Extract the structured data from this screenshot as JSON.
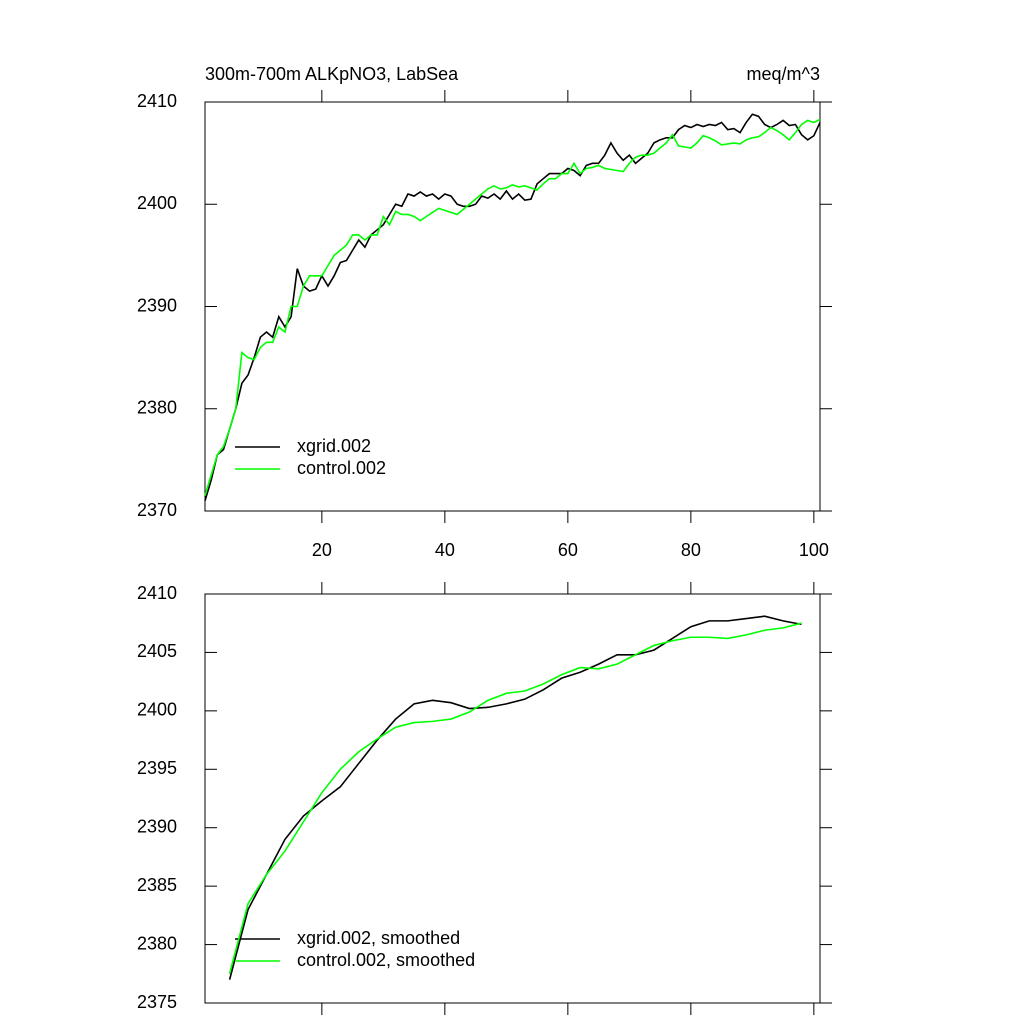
{
  "chart_data": [
    {
      "type": "line",
      "title": "300m-700m ALKpNO3, LabSea",
      "units": "meq/m^3",
      "x": [
        1,
        2,
        3,
        4,
        5,
        6,
        7,
        8,
        9,
        10,
        11,
        12,
        13,
        14,
        15,
        16,
        17,
        18,
        19,
        20,
        21,
        22,
        23,
        24,
        25,
        26,
        27,
        28,
        29,
        30,
        31,
        32,
        33,
        34,
        35,
        36,
        37,
        38,
        39,
        40,
        41,
        42,
        43,
        44,
        45,
        46,
        47,
        48,
        49,
        50,
        51,
        52,
        53,
        54,
        55,
        56,
        57,
        58,
        59,
        60,
        61,
        62,
        63,
        64,
        65,
        66,
        67,
        68,
        69,
        70,
        71,
        72,
        73,
        74,
        75,
        76,
        77,
        78,
        79,
        80,
        81,
        82,
        83,
        84,
        85,
        86,
        87,
        88,
        89,
        90,
        91,
        92,
        93,
        94,
        95,
        96,
        97,
        98,
        99,
        100,
        101
      ],
      "series": [
        {
          "name": "xgrid.002",
          "color": "#000000",
          "values": [
            2371,
            2373,
            2375.5,
            2376,
            2378,
            2380,
            2382.5,
            2383.3,
            2385,
            2387,
            2387.5,
            2387,
            2389,
            2388,
            2389,
            2393.7,
            2392,
            2391.5,
            2391.7,
            2393,
            2392,
            2393,
            2394.3,
            2394.5,
            2395.5,
            2396.5,
            2395.8,
            2397,
            2397.5,
            2398,
            2399,
            2400,
            2399.8,
            2401,
            2400.8,
            2401.2,
            2400.8,
            2401,
            2400.5,
            2401,
            2400.8,
            2400,
            2399.8,
            2399.8,
            2400,
            2400.8,
            2400.6,
            2401,
            2400.5,
            2401.3,
            2400.5,
            2401,
            2400.4,
            2400.5,
            2402,
            2402.5,
            2403,
            2403,
            2403,
            2403.5,
            2403.3,
            2402.8,
            2403.8,
            2404,
            2404,
            2404.8,
            2406,
            2405,
            2404.3,
            2404.8,
            2404,
            2404.5,
            2405,
            2406,
            2406.3,
            2406.5,
            2406.5,
            2407.3,
            2407.7,
            2407.5,
            2407.8,
            2407.6,
            2407.8,
            2407.7,
            2408,
            2407.3,
            2407.4,
            2407,
            2408,
            2408.8,
            2408.6,
            2407.8,
            2407.5,
            2407.8,
            2408.2,
            2407.7,
            2407.8,
            2406.8,
            2406.3,
            2406.7,
            2408
          ]
        },
        {
          "name": "control.002",
          "color": "#00ff00",
          "values": [
            2371.5,
            2373.5,
            2375.5,
            2376.3,
            2378,
            2380,
            2385.5,
            2385,
            2384.8,
            2386,
            2386.5,
            2386.5,
            2388,
            2387.5,
            2390,
            2390,
            2392,
            2393,
            2393,
            2393,
            2394,
            2395,
            2395.5,
            2396,
            2397,
            2397,
            2396.5,
            2397,
            2397,
            2398.8,
            2398,
            2399.3,
            2399,
            2399,
            2398.8,
            2398.4,
            2398.8,
            2399.2,
            2399.6,
            2399.4,
            2399.2,
            2399,
            2399.5,
            2400,
            2400.5,
            2401,
            2401.5,
            2401.8,
            2401.5,
            2401.6,
            2401.9,
            2401.7,
            2401.8,
            2401.6,
            2401.4,
            2402,
            2402.5,
            2402.5,
            2403,
            2403,
            2404,
            2403,
            2403.5,
            2403.6,
            2403.8,
            2403.5,
            2403.4,
            2403.3,
            2403.2,
            2404,
            2404.6,
            2404.8,
            2404.8,
            2405,
            2405.5,
            2406,
            2406.8,
            2405.7,
            2405.6,
            2405.5,
            2406,
            2406.7,
            2406.5,
            2406.2,
            2405.8,
            2405.9,
            2406,
            2405.9,
            2406.3,
            2406.5,
            2406.6,
            2407,
            2407.5,
            2407.2,
            2406.8,
            2406.3,
            2407,
            2407.8,
            2408.2,
            2408,
            2408.3
          ]
        }
      ],
      "xlim": [
        1,
        101
      ],
      "xticks": [
        20,
        40,
        60,
        80,
        100
      ],
      "xtick_labels": true,
      "ylim": [
        2370,
        2410
      ],
      "yticks": [
        2370,
        2380,
        2390,
        2400,
        2410
      ],
      "legend": "lower left"
    },
    {
      "type": "line",
      "x": [
        5,
        8,
        11,
        14,
        17,
        20,
        23,
        26,
        29,
        32,
        35,
        38,
        41,
        44,
        47,
        50,
        53,
        56,
        59,
        62,
        65,
        68,
        71,
        74,
        77,
        80,
        83,
        86,
        89,
        92,
        95,
        98
      ],
      "series": [
        {
          "name": "xgrid.002, smoothed",
          "color": "#000000",
          "values": [
            2377,
            2383,
            2386,
            2389,
            2391,
            2392.3,
            2393.5,
            2395.5,
            2397.5,
            2399.3,
            2400.6,
            2400.9,
            2400.7,
            2400.2,
            2400.3,
            2400.6,
            2401,
            2401.8,
            2402.8,
            2403.3,
            2404,
            2404.8,
            2404.8,
            2405.2,
            2406.2,
            2407.2,
            2407.7,
            2407.7,
            2407.9,
            2408.1,
            2407.7,
            2407.4
          ]
        },
        {
          "name": "control.002, smoothed",
          "color": "#00ff00",
          "values": [
            2377.5,
            2383.5,
            2386,
            2388,
            2390.5,
            2393,
            2395,
            2396.5,
            2397.6,
            2398.6,
            2399,
            2399.1,
            2399.3,
            2399.9,
            2400.9,
            2401.5,
            2401.7,
            2402.3,
            2403.1,
            2403.7,
            2403.6,
            2404,
            2404.8,
            2405.6,
            2406,
            2406.3,
            2406.3,
            2406.2,
            2406.5,
            2406.9,
            2407.1,
            2407.5
          ]
        }
      ],
      "xlim": [
        1,
        101
      ],
      "xticks": [
        20,
        40,
        60,
        80,
        100
      ],
      "xtick_labels": false,
      "ylim": [
        2375,
        2410
      ],
      "yticks": [
        2375,
        2380,
        2385,
        2390,
        2395,
        2400,
        2405,
        2410
      ],
      "legend": "lower left"
    }
  ]
}
